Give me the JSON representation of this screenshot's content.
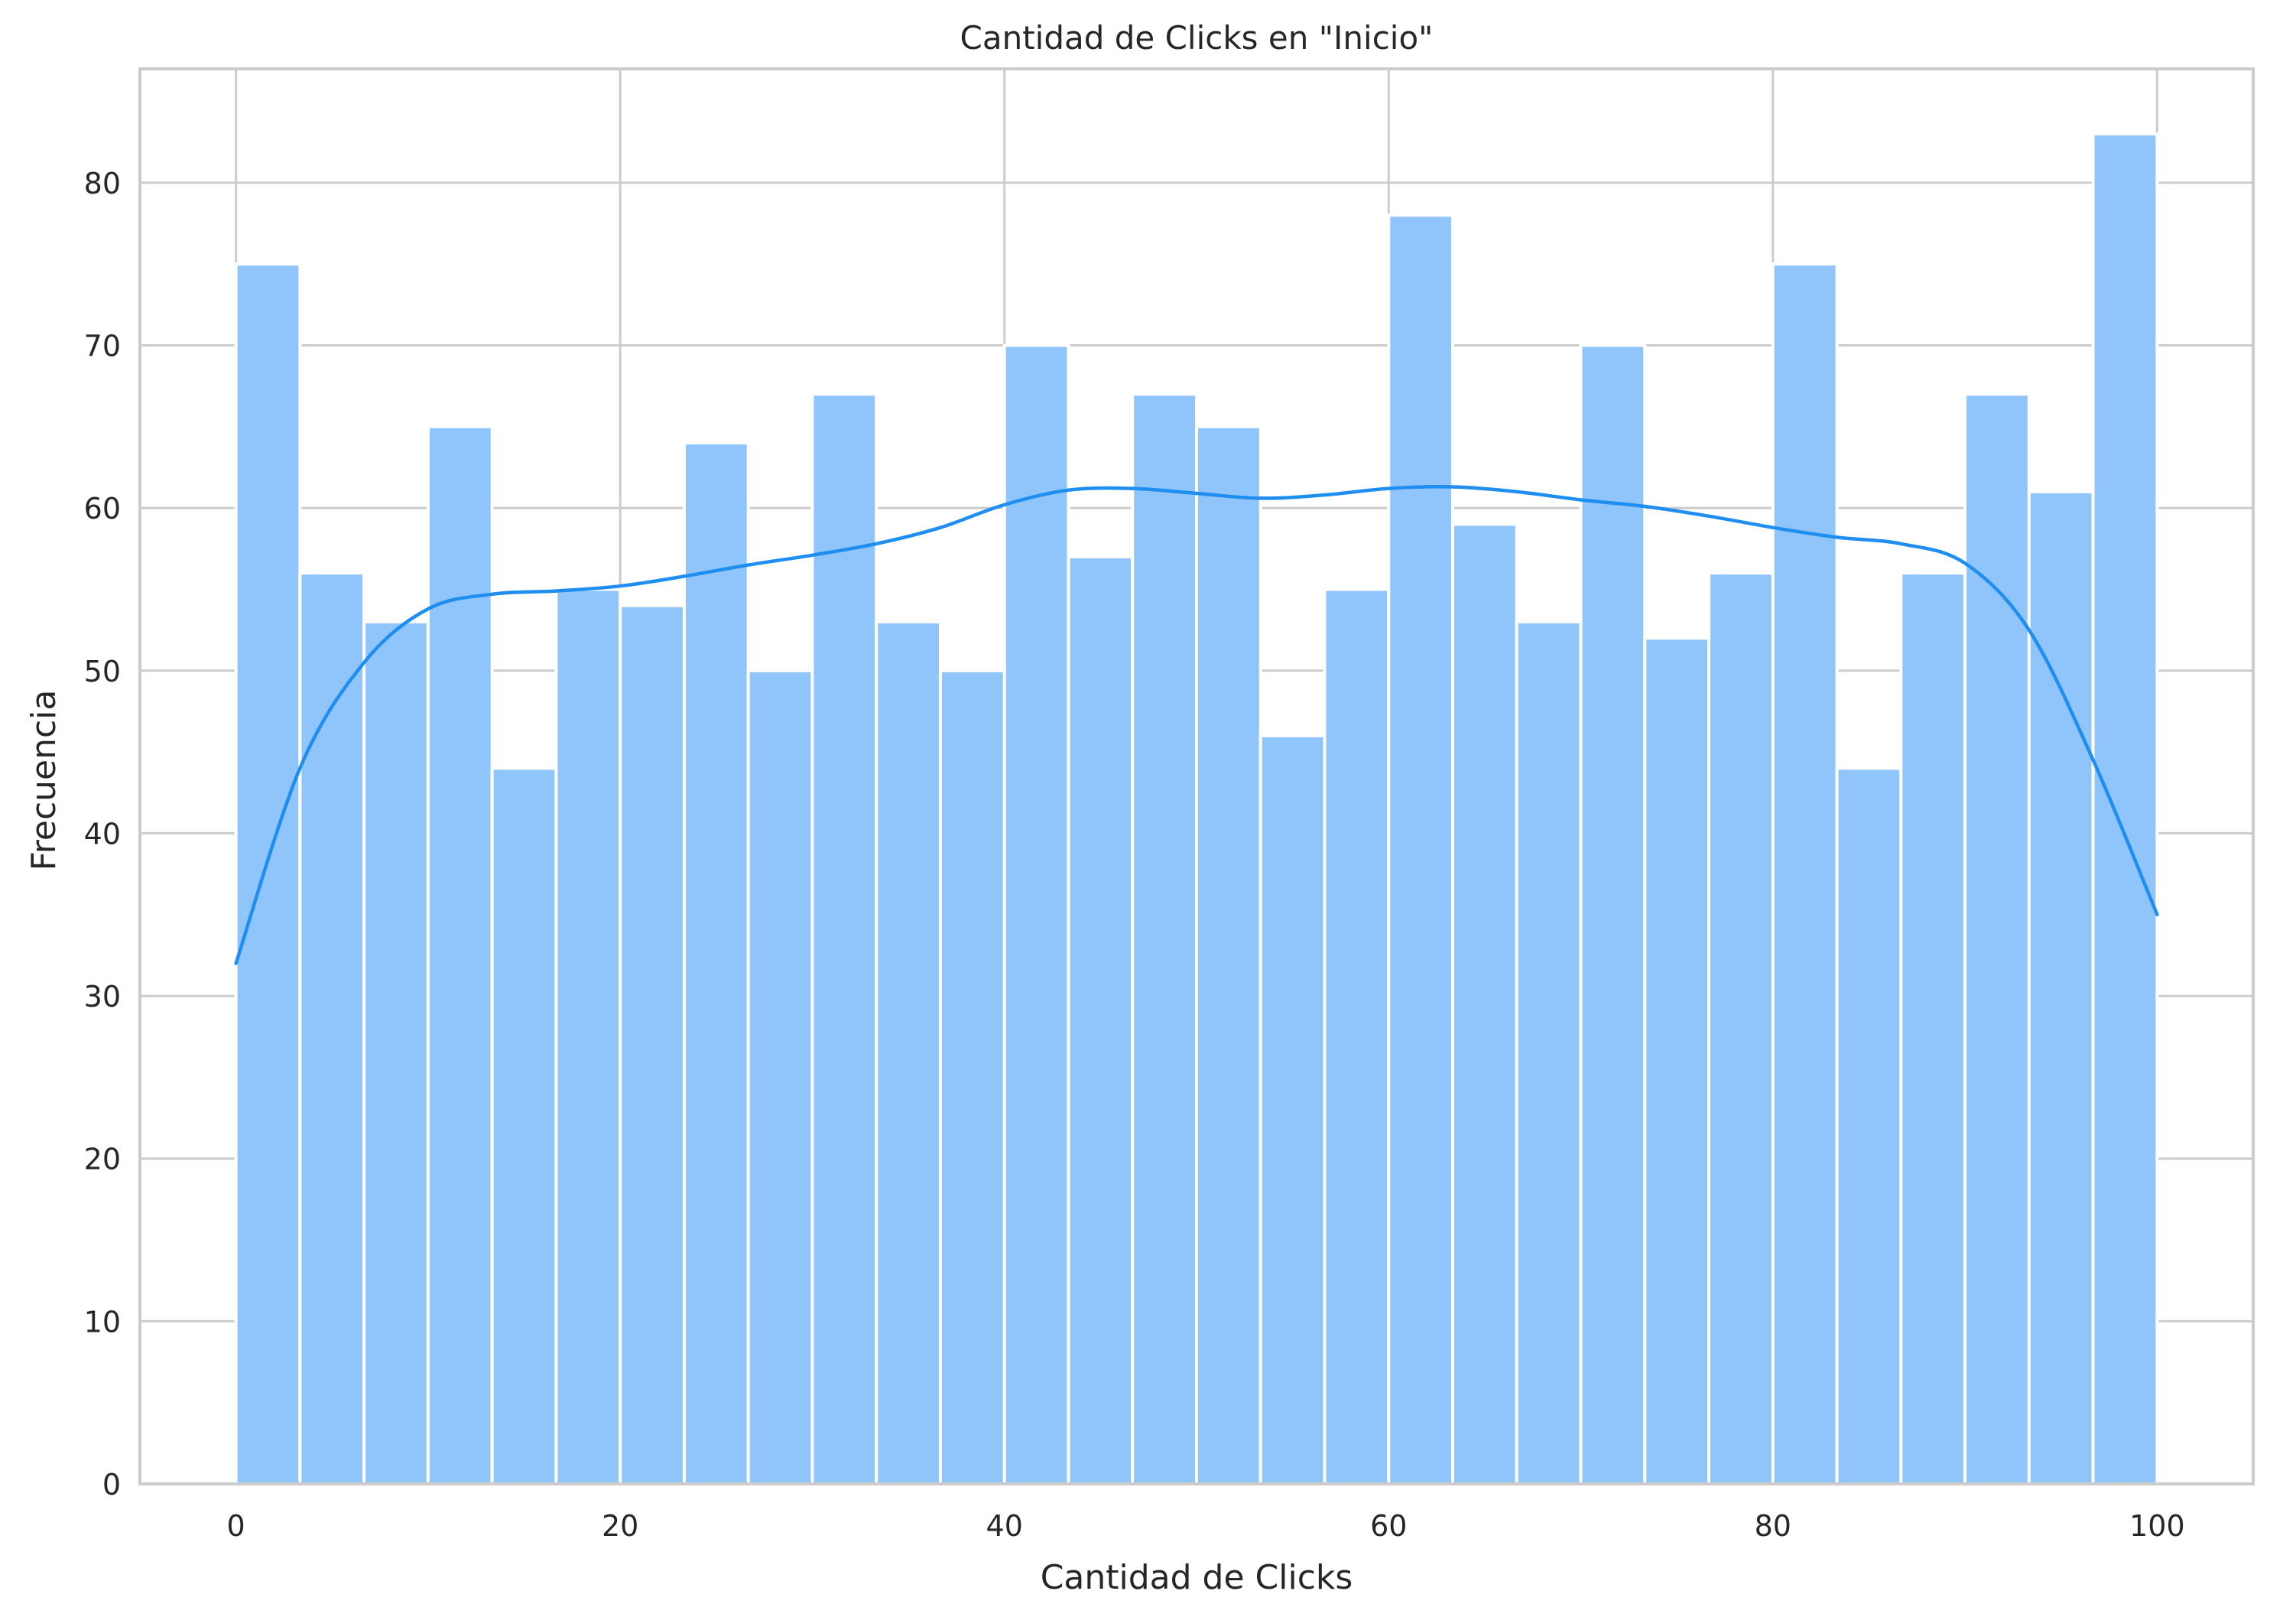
{
  "chart_data": {
    "type": "bar",
    "title": "Cantidad de Clicks en \"Inicio\"",
    "xlabel": "Cantidad de Clicks",
    "ylabel": "Frecuencia",
    "xlim": [
      -5,
      105
    ],
    "ylim": [
      0,
      87
    ],
    "xticks": [
      "0",
      "20",
      "40",
      "60",
      "80",
      "100"
    ],
    "yticks": [
      "0",
      "10",
      "20",
      "30",
      "40",
      "50",
      "60",
      "70",
      "80"
    ],
    "grid": true,
    "bar_color": "#90c5fc",
    "kde_color": "#1e8ef0",
    "bins": {
      "start": 0,
      "end": 100,
      "count": 30
    },
    "values": [
      75,
      56,
      53,
      65,
      44,
      55,
      54,
      64,
      50,
      67,
      53,
      50,
      70,
      57,
      67,
      65,
      46,
      55,
      78,
      59,
      53,
      70,
      52,
      56,
      75,
      44,
      56,
      67,
      61,
      83
    ],
    "kde": {
      "x": [
        0,
        3.33,
        6.67,
        10,
        13.33,
        16.67,
        20,
        23.33,
        26.67,
        30,
        33.33,
        36.67,
        40,
        43.33,
        46.67,
        50,
        53.33,
        56.67,
        60,
        63.33,
        66.67,
        70,
        73.33,
        76.67,
        80,
        83.33,
        86.67,
        90,
        93.33,
        96.67,
        100
      ],
      "y": [
        32,
        44,
        50.5,
        53.8,
        54.7,
        54.9,
        55.2,
        55.8,
        56.5,
        57.1,
        57.8,
        58.8,
        60.2,
        61.1,
        61.2,
        60.9,
        60.6,
        60.8,
        61.2,
        61.3,
        61,
        60.5,
        60.1,
        59.5,
        58.8,
        58.2,
        57.8,
        56.6,
        52.5,
        44.5,
        35
      ]
    }
  }
}
